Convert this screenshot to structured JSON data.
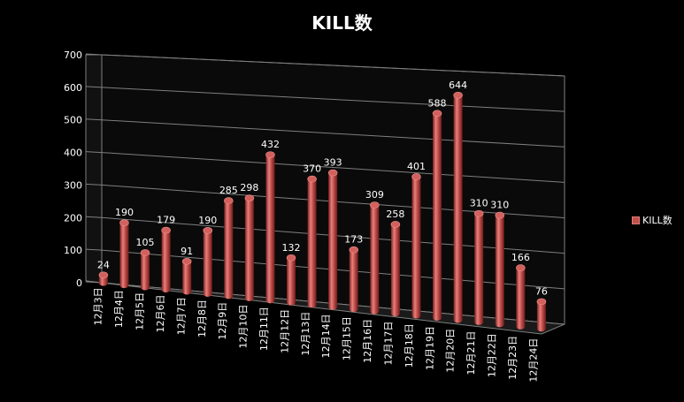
{
  "chart_data": {
    "type": "bar",
    "title": "KILL数",
    "xlabel": "",
    "ylabel": "",
    "ylim": [
      0,
      700
    ],
    "yticks": [
      0,
      100,
      200,
      300,
      400,
      500,
      600,
      700
    ],
    "categories": [
      "12月3日",
      "12月4日",
      "12月5日",
      "12月6日",
      "12月7日",
      "12月8日",
      "12月9日",
      "12月10日",
      "12月11日",
      "12月12日",
      "12月13日",
      "12月14日",
      "12月15日",
      "12月16日",
      "12月17日",
      "12月18日",
      "12月19日",
      "12月20日",
      "12月21日",
      "12月22日",
      "12月23日",
      "12月24日"
    ],
    "series": [
      {
        "name": "KILL数",
        "values": [
          24,
          190,
          105,
          179,
          91,
          190,
          285,
          298,
          432,
          132,
          370,
          393,
          173,
          309,
          258,
          401,
          588,
          644,
          310,
          310,
          166,
          76
        ]
      }
    ],
    "grid": true,
    "legend": "right",
    "colors": {
      "bar": "#c0504d",
      "bar_light": "#e8807d",
      "bar_dark": "#7a1f1d",
      "grid": "#7f7f7f"
    }
  }
}
